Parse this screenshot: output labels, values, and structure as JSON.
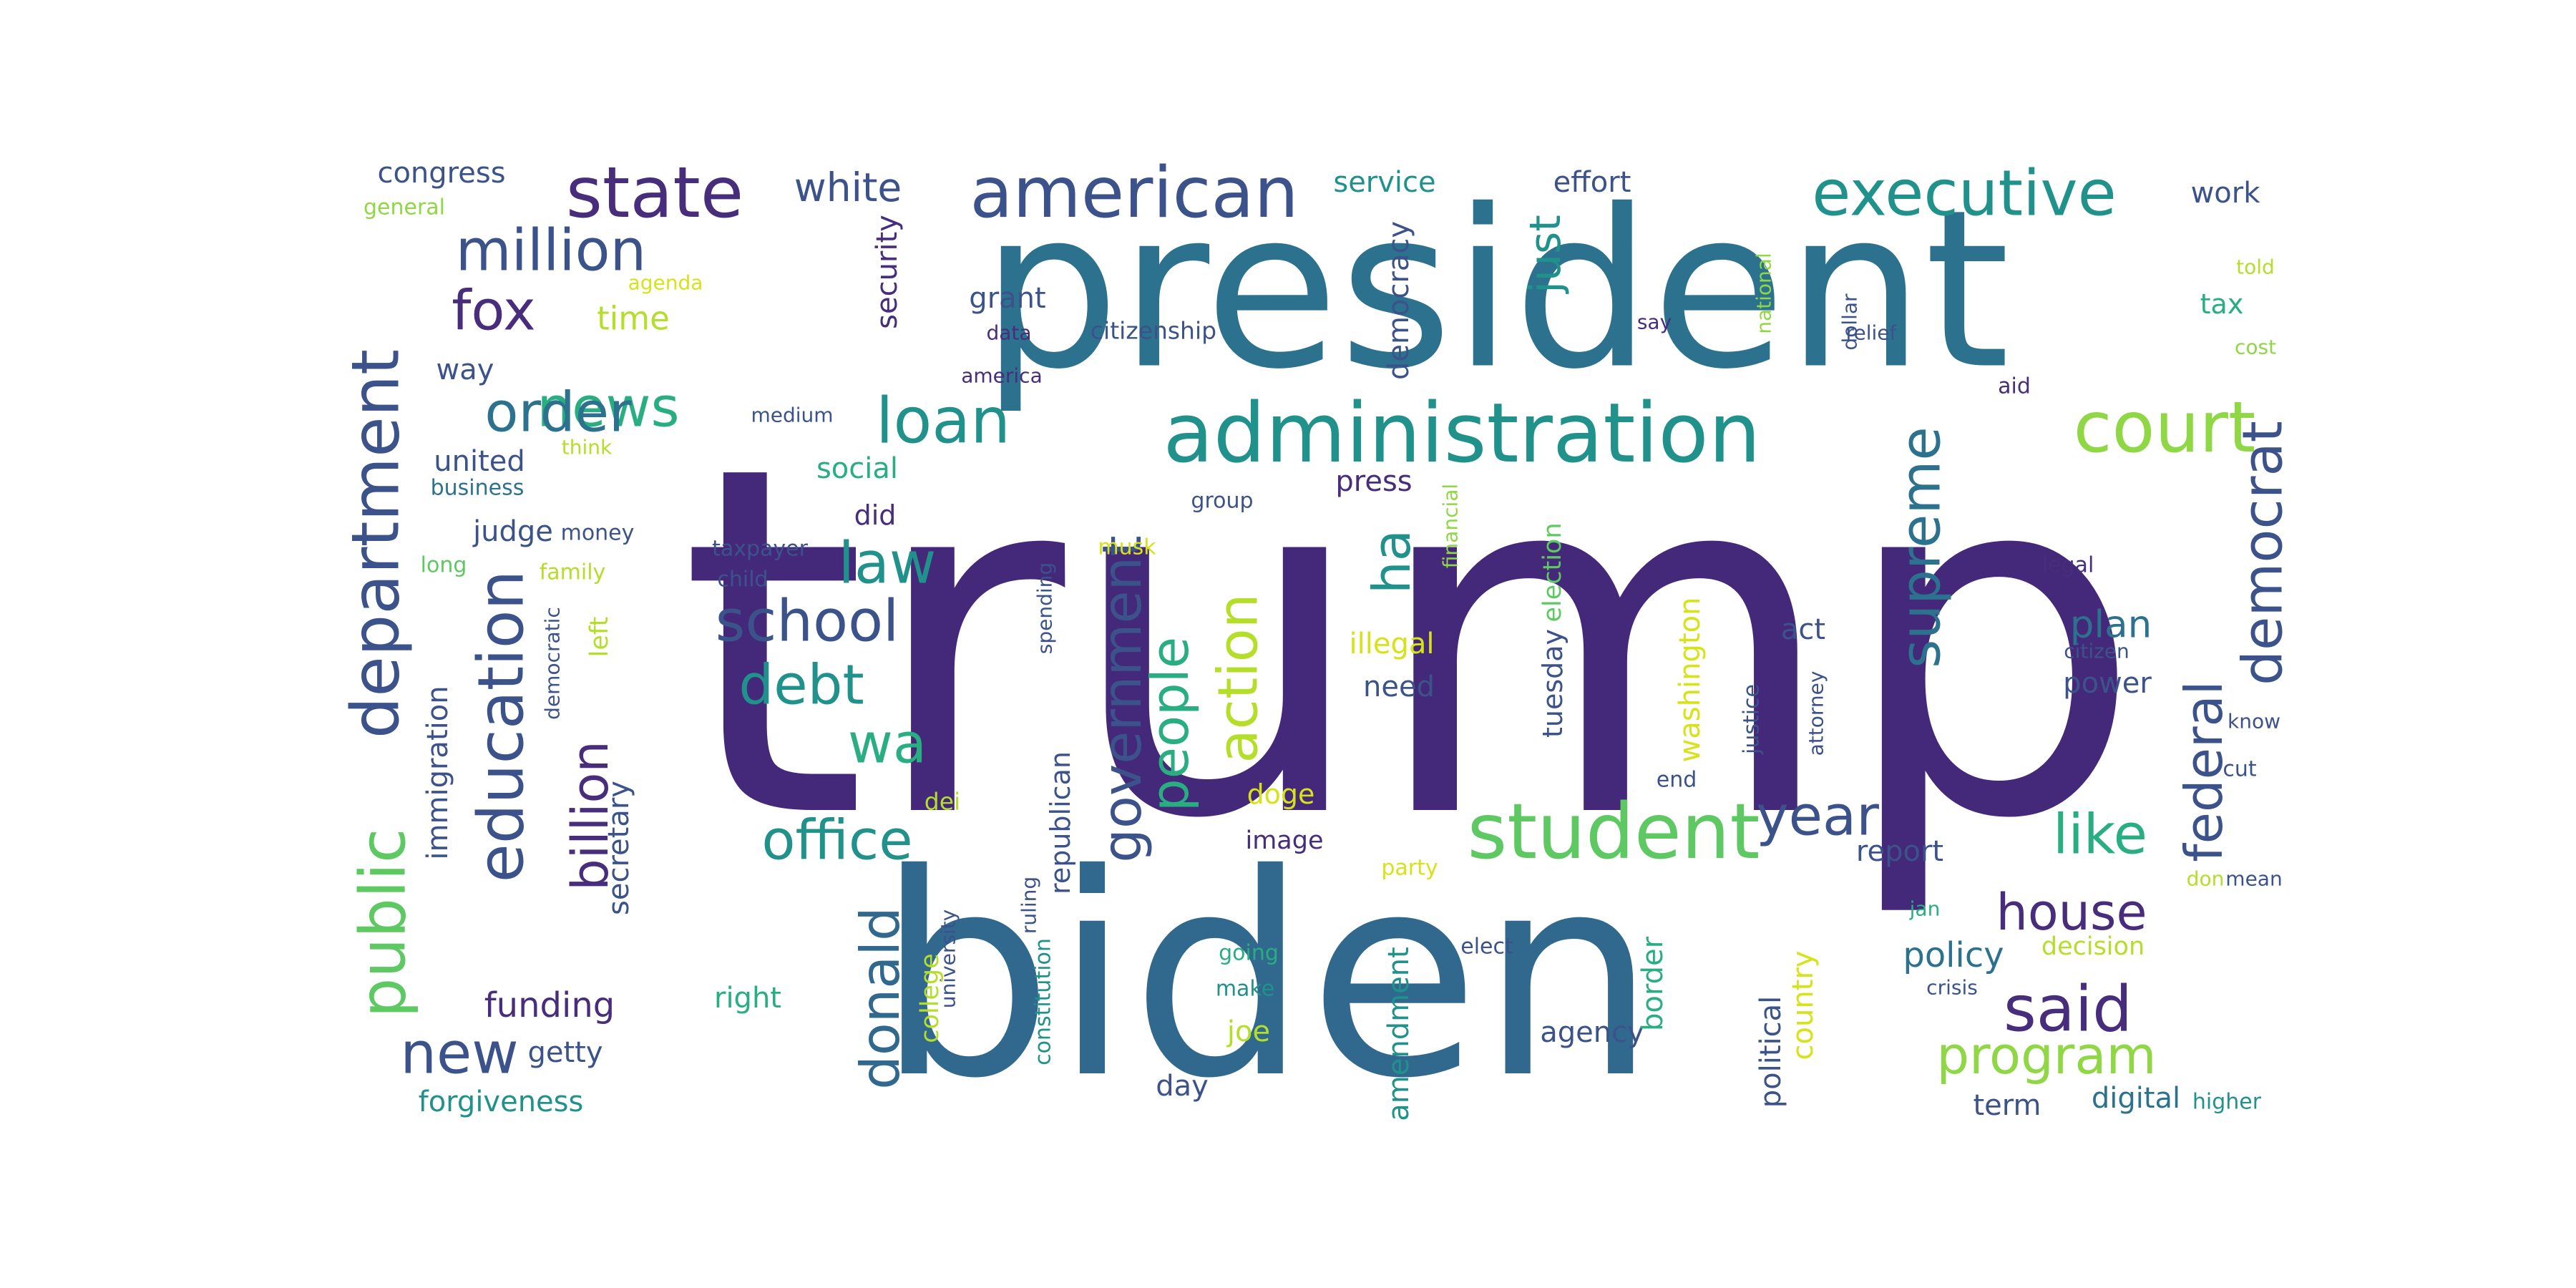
{
  "palette": {
    "background": "#ffffff",
    "deep_purple": "#44287a",
    "purple": "#472d7b",
    "indigo": "#3b528b",
    "blue": "#31688e",
    "steel": "#2c728e",
    "teal": "#21918c",
    "green_teal": "#28ae80",
    "green": "#5ec962",
    "light_green": "#8fd744",
    "yellow_green": "#b5de2b",
    "yellow": "#d8e219"
  },
  "words": [
    {
      "text": "trump",
      "color": "deep_purple",
      "orientation": "horizontal"
    },
    {
      "text": "biden",
      "color": "blue",
      "orientation": "horizontal"
    },
    {
      "text": "president",
      "color": "steel",
      "orientation": "horizontal"
    },
    {
      "text": "administration",
      "color": "teal",
      "orientation": "horizontal"
    },
    {
      "text": "american",
      "color": "indigo",
      "orientation": "horizontal"
    },
    {
      "text": "state",
      "color": "purple",
      "orientation": "horizontal"
    },
    {
      "text": "executive",
      "color": "teal",
      "orientation": "horizontal"
    },
    {
      "text": "million",
      "color": "indigo",
      "orientation": "horizontal"
    },
    {
      "text": "department",
      "color": "indigo",
      "orientation": "vertical"
    },
    {
      "text": "education",
      "color": "indigo",
      "orientation": "vertical"
    },
    {
      "text": "public",
      "color": "green",
      "orientation": "vertical"
    },
    {
      "text": "student",
      "color": "green",
      "orientation": "horizontal"
    },
    {
      "text": "court",
      "color": "light_green",
      "orientation": "horizontal"
    },
    {
      "text": "supreme",
      "color": "steel",
      "orientation": "vertical"
    },
    {
      "text": "democrat",
      "color": "indigo",
      "orientation": "vertical"
    },
    {
      "text": "federal",
      "color": "indigo",
      "orientation": "vertical"
    },
    {
      "text": "loan",
      "color": "teal",
      "orientation": "horizontal"
    },
    {
      "text": "news",
      "color": "green_teal",
      "orientation": "horizontal"
    },
    {
      "text": "fox",
      "color": "purple",
      "orientation": "horizontal"
    },
    {
      "text": "order",
      "color": "steel",
      "orientation": "horizontal"
    },
    {
      "text": "school",
      "color": "indigo",
      "orientation": "horizontal"
    },
    {
      "text": "law",
      "color": "teal",
      "orientation": "horizontal"
    },
    {
      "text": "debt",
      "color": "teal",
      "orientation": "horizontal"
    },
    {
      "text": "wa",
      "color": "green_teal",
      "orientation": "horizontal"
    },
    {
      "text": "ha",
      "color": "teal",
      "orientation": "vertical"
    },
    {
      "text": "action",
      "color": "yellow_green",
      "orientation": "vertical"
    },
    {
      "text": "government",
      "color": "indigo",
      "orientation": "vertical"
    },
    {
      "text": "people",
      "color": "green_teal",
      "orientation": "vertical"
    },
    {
      "text": "office",
      "color": "teal",
      "orientation": "horizontal"
    },
    {
      "text": "billion",
      "color": "purple",
      "orientation": "vertical"
    },
    {
      "text": "new",
      "color": "indigo",
      "orientation": "horizontal"
    },
    {
      "text": "funding",
      "color": "purple",
      "orientation": "horizontal"
    },
    {
      "text": "donald",
      "color": "blue",
      "orientation": "vertical"
    },
    {
      "text": "year",
      "color": "indigo",
      "orientation": "horizontal"
    },
    {
      "text": "like",
      "color": "green_teal",
      "orientation": "horizontal"
    },
    {
      "text": "house",
      "color": "purple",
      "orientation": "horizontal"
    },
    {
      "text": "said",
      "color": "purple",
      "orientation": "horizontal"
    },
    {
      "text": "program",
      "color": "light_green",
      "orientation": "horizontal"
    },
    {
      "text": "policy",
      "color": "steel",
      "orientation": "horizontal"
    },
    {
      "text": "plan",
      "color": "steel",
      "orientation": "horizontal"
    },
    {
      "text": "power",
      "color": "indigo",
      "orientation": "horizontal"
    },
    {
      "text": "just",
      "color": "teal",
      "orientation": "vertical"
    },
    {
      "text": "white",
      "color": "indigo",
      "orientation": "horizontal"
    },
    {
      "text": "time",
      "color": "yellow_green",
      "orientation": "horizontal"
    },
    {
      "text": "congress",
      "color": "indigo",
      "orientation": "horizontal"
    },
    {
      "text": "general",
      "color": "light_green",
      "orientation": "horizontal"
    },
    {
      "text": "agenda",
      "color": "yellow",
      "orientation": "horizontal"
    },
    {
      "text": "way",
      "color": "indigo",
      "orientation": "horizontal"
    },
    {
      "text": "united",
      "color": "indigo",
      "orientation": "horizontal"
    },
    {
      "text": "business",
      "color": "steel",
      "orientation": "horizontal"
    },
    {
      "text": "think",
      "color": "yellow_green",
      "orientation": "horizontal"
    },
    {
      "text": "judge",
      "color": "indigo",
      "orientation": "horizontal"
    },
    {
      "text": "money",
      "color": "indigo",
      "orientation": "horizontal"
    },
    {
      "text": "long",
      "color": "green",
      "orientation": "horizontal"
    },
    {
      "text": "family",
      "color": "yellow_green",
      "orientation": "horizontal"
    },
    {
      "text": "democratic",
      "color": "indigo",
      "orientation": "vertical"
    },
    {
      "text": "left",
      "color": "yellow_green",
      "orientation": "vertical"
    },
    {
      "text": "immigration",
      "color": "indigo",
      "orientation": "vertical"
    },
    {
      "text": "secretary",
      "color": "indigo",
      "orientation": "vertical"
    },
    {
      "text": "getty",
      "color": "indigo",
      "orientation": "horizontal"
    },
    {
      "text": "forgiveness",
      "color": "teal",
      "orientation": "horizontal"
    },
    {
      "text": "security",
      "color": "purple",
      "orientation": "vertical"
    },
    {
      "text": "social",
      "color": "green_teal",
      "orientation": "horizontal"
    },
    {
      "text": "did",
      "color": "purple",
      "orientation": "horizontal"
    },
    {
      "text": "grant",
      "color": "indigo",
      "orientation": "horizontal"
    },
    {
      "text": "data",
      "color": "purple",
      "orientation": "horizontal"
    },
    {
      "text": "america",
      "color": "purple",
      "orientation": "horizontal"
    },
    {
      "text": "medium",
      "color": "indigo",
      "orientation": "horizontal"
    },
    {
      "text": "service",
      "color": "teal",
      "orientation": "horizontal"
    },
    {
      "text": "democracy",
      "color": "indigo",
      "orientation": "vertical"
    },
    {
      "text": "citizenship",
      "color": "indigo",
      "orientation": "horizontal"
    },
    {
      "text": "effort",
      "color": "indigo",
      "orientation": "horizontal"
    },
    {
      "text": "say",
      "color": "purple",
      "orientation": "horizontal"
    },
    {
      "text": "national",
      "color": "light_green",
      "orientation": "vertical"
    },
    {
      "text": "relief",
      "color": "indigo",
      "orientation": "horizontal"
    },
    {
      "text": "aid",
      "color": "purple",
      "orientation": "horizontal"
    },
    {
      "text": "dollar",
      "color": "indigo",
      "orientation": "vertical"
    },
    {
      "text": "work",
      "color": "indigo",
      "orientation": "horizontal"
    },
    {
      "text": "told",
      "color": "yellow_green",
      "orientation": "horizontal"
    },
    {
      "text": "tax",
      "color": "green_teal",
      "orientation": "horizontal"
    },
    {
      "text": "cost",
      "color": "light_green",
      "orientation": "horizontal"
    },
    {
      "text": "press",
      "color": "purple",
      "orientation": "horizontal"
    },
    {
      "text": "group",
      "color": "indigo",
      "orientation": "horizontal"
    },
    {
      "text": "financial",
      "color": "light_green",
      "orientation": "vertical"
    },
    {
      "text": "taxpayer",
      "color": "indigo",
      "orientation": "horizontal"
    },
    {
      "text": "child",
      "color": "indigo",
      "orientation": "horizontal"
    },
    {
      "text": "musk",
      "color": "yellow",
      "orientation": "horizontal"
    },
    {
      "text": "spending",
      "color": "indigo",
      "orientation": "vertical"
    },
    {
      "text": "election",
      "color": "green",
      "orientation": "vertical"
    },
    {
      "text": "tuesday",
      "color": "indigo",
      "orientation": "vertical"
    },
    {
      "text": "legal",
      "color": "purple",
      "orientation": "horizontal"
    },
    {
      "text": "citizen",
      "color": "indigo",
      "orientation": "horizontal"
    },
    {
      "text": "illegal",
      "color": "yellow",
      "orientation": "horizontal"
    },
    {
      "text": "need",
      "color": "indigo",
      "orientation": "horizontal"
    },
    {
      "text": "washington",
      "color": "yellow",
      "orientation": "vertical"
    },
    {
      "text": "act",
      "color": "indigo",
      "orientation": "horizontal"
    },
    {
      "text": "justice",
      "color": "indigo",
      "orientation": "vertical"
    },
    {
      "text": "attorney",
      "color": "indigo",
      "orientation": "vertical"
    },
    {
      "text": "know",
      "color": "indigo",
      "orientation": "horizontal"
    },
    {
      "text": "cut",
      "color": "indigo",
      "orientation": "horizontal"
    },
    {
      "text": "end",
      "color": "indigo",
      "orientation": "horizontal"
    },
    {
      "text": "report",
      "color": "indigo",
      "orientation": "horizontal"
    },
    {
      "text": "republican",
      "color": "indigo",
      "orientation": "vertical"
    },
    {
      "text": "dei",
      "color": "yellow_green",
      "orientation": "horizontal"
    },
    {
      "text": "doge",
      "color": "yellow",
      "orientation": "horizontal"
    },
    {
      "text": "image",
      "color": "purple",
      "orientation": "horizontal"
    },
    {
      "text": "party",
      "color": "yellow",
      "orientation": "horizontal"
    },
    {
      "text": "don",
      "color": "yellow_green",
      "orientation": "horizontal"
    },
    {
      "text": "mean",
      "color": "indigo",
      "orientation": "horizontal"
    },
    {
      "text": "jan",
      "color": "green_teal",
      "orientation": "horizontal"
    },
    {
      "text": "decision",
      "color": "yellow_green",
      "orientation": "horizontal"
    },
    {
      "text": "crisis",
      "color": "indigo",
      "orientation": "horizontal"
    },
    {
      "text": "ruling",
      "color": "indigo",
      "orientation": "vertical"
    },
    {
      "text": "university",
      "color": "indigo",
      "orientation": "vertical"
    },
    {
      "text": "constitution",
      "color": "teal",
      "orientation": "vertical"
    },
    {
      "text": "college",
      "color": "yellow_green",
      "orientation": "vertical"
    },
    {
      "text": "right",
      "color": "green_teal",
      "orientation": "horizontal"
    },
    {
      "text": "joe",
      "color": "yellow_green",
      "orientation": "horizontal"
    },
    {
      "text": "day",
      "color": "indigo",
      "orientation": "horizontal"
    },
    {
      "text": "going",
      "color": "green_teal",
      "orientation": "horizontal"
    },
    {
      "text": "make",
      "color": "teal",
      "orientation": "horizontal"
    },
    {
      "text": "amendment",
      "color": "teal",
      "orientation": "vertical"
    },
    {
      "text": "elect",
      "color": "indigo",
      "orientation": "horizontal"
    },
    {
      "text": "agency",
      "color": "indigo",
      "orientation": "horizontal"
    },
    {
      "text": "border",
      "color": "green_teal",
      "orientation": "vertical"
    },
    {
      "text": "political",
      "color": "indigo",
      "orientation": "vertical"
    },
    {
      "text": "country",
      "color": "yellow",
      "orientation": "vertical"
    },
    {
      "text": "term",
      "color": "indigo",
      "orientation": "horizontal"
    },
    {
      "text": "digital",
      "color": "steel",
      "orientation": "horizontal"
    },
    {
      "text": "higher",
      "color": "teal",
      "orientation": "horizontal"
    }
  ]
}
